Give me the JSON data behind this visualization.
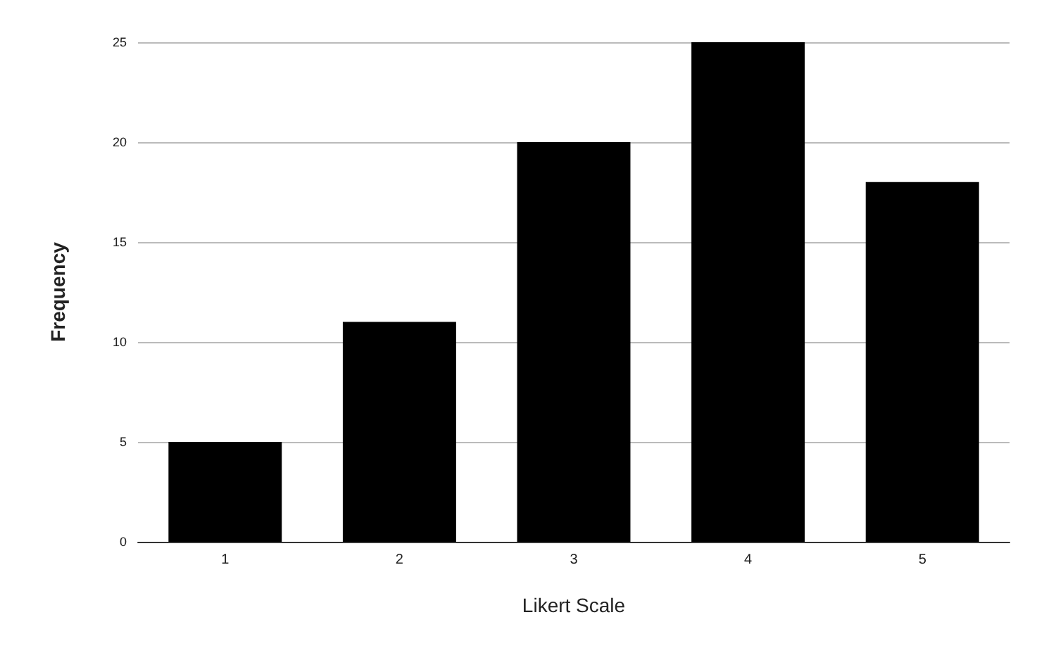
{
  "chart_data": {
    "type": "bar",
    "xlabel": "Likert Scale",
    "ylabel": "Frequency",
    "categories": [
      "1",
      "2",
      "3",
      "4",
      "5"
    ],
    "values": [
      5,
      11,
      20,
      25,
      18
    ],
    "color": "#000000",
    "ylim": [
      0,
      25
    ],
    "yticks": [
      0,
      5,
      10,
      15,
      20,
      25
    ],
    "grid": "y"
  }
}
